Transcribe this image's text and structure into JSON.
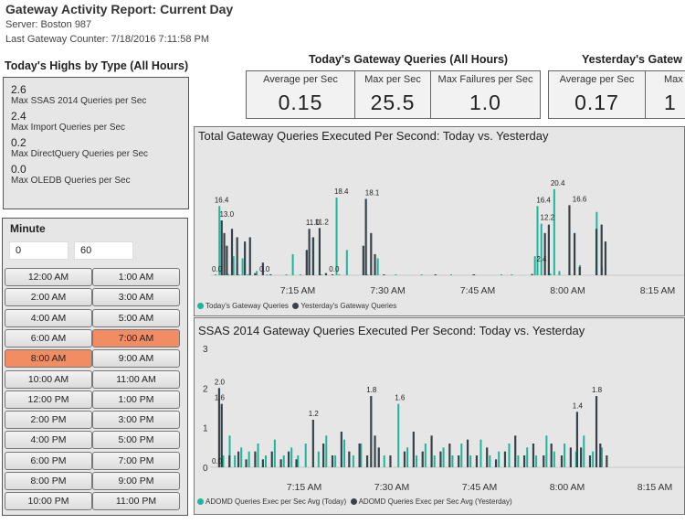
{
  "report": {
    "title": "Gateway Activity Report: Current Day",
    "server": "Server: Boston 987",
    "last_counter": "Last Gateway Counter: 7/18/2016 7:11:58 PM"
  },
  "highs": {
    "title": "Today's Highs by Type (All Hours)",
    "items": [
      {
        "value": "2.6",
        "label": "Max SSAS 2014 Queries per Sec"
      },
      {
        "value": "2.4",
        "label": "Max Import Queries per Sec"
      },
      {
        "value": "0.2",
        "label": "Max DirectQuery Queries per Sec"
      },
      {
        "value": "0.0",
        "label": "Max OLEDB Queries per Sec"
      }
    ]
  },
  "today_kpis": {
    "title": "Today's Gateway Queries (All Hours)",
    "avg_label": "Average per Sec",
    "avg_value": "0.15",
    "max_label": "Max per Sec",
    "max_value": "25.5",
    "fail_label": "Max Failures per Sec",
    "fail_value": "1.0"
  },
  "yesterday_kpis": {
    "title": "Yesterday's Gatew",
    "avg_label": "Average per Sec",
    "avg_value": "0.17",
    "max_label": "Max",
    "max_value": "1"
  },
  "minute": {
    "title": "Minute",
    "from_value": "0",
    "to_value": "60",
    "hours": [
      "12:00 AM",
      "1:00 AM",
      "2:00 AM",
      "3:00 AM",
      "4:00 AM",
      "5:00 AM",
      "6:00 AM",
      "7:00 AM",
      "8:00 AM",
      "9:00 AM",
      "10:00 AM",
      "11:00 AM",
      "12:00 PM",
      "1:00 PM",
      "2:00 PM",
      "3:00 PM",
      "4:00 PM",
      "5:00 PM",
      "6:00 PM",
      "7:00 PM",
      "8:00 PM",
      "9:00 PM",
      "10:00 PM",
      "11:00 PM"
    ],
    "selected": [
      "7:00 AM",
      "8:00 AM"
    ]
  },
  "colors": {
    "today": "#1fb59a",
    "yesterday": "#37424a",
    "selected": "#f28c63"
  },
  "chart_data": [
    {
      "type": "bar",
      "title": "Total Gateway Queries Executed Per Second: Today vs. Yesterday",
      "x_ticks": [
        "7:15 AM",
        "7:30 AM",
        "7:45 AM",
        "8:00 AM",
        "8:15 AM"
      ],
      "series": [
        {
          "name": "Today's Gateway Queries",
          "color": "#1fb59a"
        },
        {
          "name": "Yesterday's Gateway Queries",
          "color": "#37424a"
        }
      ],
      "x_range_minutes": [
        7.0,
        29.5
      ],
      "data_labels": [
        {
          "minute": 7.2,
          "value": "16.4"
        },
        {
          "minute": 7.6,
          "value": "13.0"
        },
        {
          "minute": 7.0,
          "value": "0.0"
        },
        {
          "minute": 14.3,
          "value": "11.0"
        },
        {
          "minute": 15.0,
          "value": "11.2"
        },
        {
          "minute": 16.5,
          "value": "18.4"
        },
        {
          "minute": 18.9,
          "value": "18.1"
        },
        {
          "minute": 32.2,
          "value": "16.4"
        },
        {
          "minute": 32.5,
          "value": "12.2"
        },
        {
          "minute": 33.3,
          "value": "20.4"
        },
        {
          "minute": 35.0,
          "value": "16.6"
        },
        {
          "minute": 32.2,
          "value": "2.4"
        },
        {
          "minute": 10.7,
          "value": "0.0"
        },
        {
          "minute": 16.1,
          "value": "0.0"
        }
      ],
      "today": [
        [
          7.0,
          0.2
        ],
        [
          7.3,
          16.4
        ],
        [
          7.5,
          0.2
        ],
        [
          8.0,
          0.3
        ],
        [
          8.4,
          4.5
        ],
        [
          8.8,
          0.2
        ],
        [
          9.1,
          4.0
        ],
        [
          9.5,
          0.2
        ],
        [
          10.2,
          1.0
        ],
        [
          11.0,
          0.2
        ],
        [
          12.5,
          0.1
        ],
        [
          13.0,
          5.0
        ],
        [
          13.6,
          0.2
        ],
        [
          14.6,
          9.0
        ],
        [
          15.2,
          0.1
        ],
        [
          16.4,
          18.4
        ],
        [
          16.6,
          0.2
        ],
        [
          17.2,
          6.0
        ],
        [
          18.8,
          0.2
        ],
        [
          19.6,
          4.0
        ],
        [
          21.0,
          0.1
        ],
        [
          23.0,
          0.2
        ],
        [
          25.3,
          0.1
        ],
        [
          27.0,
          0.2
        ],
        [
          29.2,
          0.2
        ],
        [
          30.0,
          0.1
        ],
        [
          31.8,
          4.5
        ],
        [
          32.0,
          16.4
        ],
        [
          32.3,
          12.2
        ],
        [
          33.0,
          0.4
        ],
        [
          33.3,
          20.4
        ],
        [
          33.7,
          1.0
        ],
        [
          34.5,
          0.2
        ],
        [
          35.3,
          2.4
        ],
        [
          36.6,
          15.0
        ],
        [
          37.0,
          2.0
        ]
      ],
      "yesterday": [
        [
          7.4,
          13.0
        ],
        [
          7.6,
          10.0
        ],
        [
          7.8,
          7.0
        ],
        [
          8.2,
          11.0
        ],
        [
          8.6,
          9.0
        ],
        [
          9.2,
          8.0
        ],
        [
          9.6,
          9.0
        ],
        [
          10.0,
          0.5
        ],
        [
          10.6,
          3.0
        ],
        [
          11.2,
          0.2
        ],
        [
          14.0,
          6.0
        ],
        [
          14.2,
          11.0
        ],
        [
          14.5,
          9.0
        ],
        [
          15.0,
          11.2
        ],
        [
          15.5,
          0.5
        ],
        [
          16.0,
          0.1
        ],
        [
          18.4,
          7.0
        ],
        [
          18.6,
          18.1
        ],
        [
          19.0,
          10.0
        ],
        [
          19.3,
          5.0
        ],
        [
          20.0,
          0.1
        ],
        [
          24.0,
          0.2
        ],
        [
          27.0,
          0.1
        ],
        [
          31.5,
          0.3
        ],
        [
          32.5,
          10.0
        ],
        [
          32.8,
          12.0
        ],
        [
          34.4,
          16.6
        ],
        [
          34.8,
          10.0
        ],
        [
          35.2,
          2.0
        ],
        [
          36.5,
          11.0
        ],
        [
          36.9,
          12.0
        ],
        [
          37.2,
          8.0
        ]
      ],
      "ylim": [
        0,
        26
      ]
    },
    {
      "type": "bar",
      "title": "SSAS 2014 Gateway Queries Executed Per Second: Today vs. Yesterday",
      "x_ticks": [
        "7:15 AM",
        "7:30 AM",
        "7:45 AM",
        "8:00 AM",
        "8:15 AM"
      ],
      "y_ticks": [
        "3",
        "2",
        "1",
        "0"
      ],
      "series": [
        {
          "name": "ADOMD Queries Exec per Sec Avg (Today)",
          "color": "#1fb59a"
        },
        {
          "name": "ADOMD Queries Exec per Sec Avg (Yesterday)",
          "color": "#37424a"
        }
      ],
      "data_labels": [
        {
          "minute": 7.2,
          "value": "2.0"
        },
        {
          "minute": 7.2,
          "value": "1.6"
        },
        {
          "minute": 7.0,
          "value": "0.0"
        },
        {
          "minute": 14.5,
          "value": "1.2"
        },
        {
          "minute": 19.0,
          "value": "1.8"
        },
        {
          "minute": 21.2,
          "value": "1.6"
        },
        {
          "minute": 35.0,
          "value": "1.4"
        },
        {
          "minute": 36.5,
          "value": "1.8"
        }
      ],
      "today": [
        [
          7.6,
          0.3
        ],
        [
          8.1,
          0.8
        ],
        [
          8.5,
          0.3
        ],
        [
          9.0,
          0.5
        ],
        [
          9.6,
          0.4
        ],
        [
          10.3,
          0.6
        ],
        [
          10.9,
          0.3
        ],
        [
          11.6,
          0.7
        ],
        [
          12.3,
          0.3
        ],
        [
          12.9,
          0.5
        ],
        [
          13.4,
          0.3
        ],
        [
          14.0,
          0.6
        ],
        [
          15.0,
          0.4
        ],
        [
          15.6,
          0.8
        ],
        [
          16.3,
          0.3
        ],
        [
          17.0,
          0.7
        ],
        [
          17.7,
          0.3
        ],
        [
          18.3,
          0.6
        ],
        [
          20.1,
          0.3
        ],
        [
          21.2,
          1.6
        ],
        [
          21.9,
          0.5
        ],
        [
          22.6,
          0.3
        ],
        [
          23.3,
          0.6
        ],
        [
          24.0,
          0.3
        ],
        [
          24.7,
          0.5
        ],
        [
          25.4,
          0.3
        ],
        [
          26.1,
          0.6
        ],
        [
          26.8,
          0.3
        ],
        [
          27.6,
          0.7
        ],
        [
          28.3,
          0.3
        ],
        [
          29.0,
          0.4
        ],
        [
          29.8,
          0.6
        ],
        [
          30.5,
          0.3
        ],
        [
          31.2,
          0.5
        ],
        [
          31.9,
          0.3
        ],
        [
          32.7,
          0.8
        ],
        [
          33.3,
          0.4
        ],
        [
          34.1,
          0.6
        ],
        [
          35.0,
          0.4
        ],
        [
          35.6,
          0.8
        ],
        [
          36.3,
          0.4
        ],
        [
          37.0,
          0.5
        ]
      ],
      "yesterday": [
        [
          7.2,
          2.0
        ],
        [
          7.4,
          1.6
        ],
        [
          8.0,
          0.3
        ],
        [
          8.7,
          0.4
        ],
        [
          9.3,
          0.2
        ],
        [
          10.0,
          0.4
        ],
        [
          10.6,
          0.2
        ],
        [
          11.3,
          0.4
        ],
        [
          12.0,
          0.2
        ],
        [
          12.6,
          0.4
        ],
        [
          13.2,
          0.2
        ],
        [
          14.5,
          1.2
        ],
        [
          15.3,
          0.6
        ],
        [
          16.0,
          0.3
        ],
        [
          16.7,
          0.9
        ],
        [
          17.3,
          0.4
        ],
        [
          18.1,
          0.6
        ],
        [
          18.7,
          0.3
        ],
        [
          19.0,
          1.8
        ],
        [
          19.3,
          0.8
        ],
        [
          19.6,
          0.5
        ],
        [
          20.5,
          0.3
        ],
        [
          21.6,
          0.4
        ],
        [
          22.3,
          0.9
        ],
        [
          23.0,
          0.4
        ],
        [
          23.7,
          0.8
        ],
        [
          24.4,
          0.4
        ],
        [
          25.1,
          0.6
        ],
        [
          25.8,
          0.3
        ],
        [
          26.5,
          0.7
        ],
        [
          27.2,
          0.3
        ],
        [
          28.0,
          0.5
        ],
        [
          28.7,
          0.2
        ],
        [
          29.4,
          0.4
        ],
        [
          30.2,
          0.8
        ],
        [
          30.9,
          0.3
        ],
        [
          31.6,
          0.6
        ],
        [
          32.4,
          0.3
        ],
        [
          33.0,
          0.6
        ],
        [
          33.8,
          0.3
        ],
        [
          34.5,
          0.5
        ],
        [
          35.0,
          1.4
        ],
        [
          35.3,
          0.5
        ],
        [
          36.0,
          0.3
        ],
        [
          36.5,
          1.8
        ],
        [
          36.8,
          0.6
        ],
        [
          37.3,
          0.3
        ]
      ],
      "ylim": [
        0,
        3
      ]
    }
  ]
}
